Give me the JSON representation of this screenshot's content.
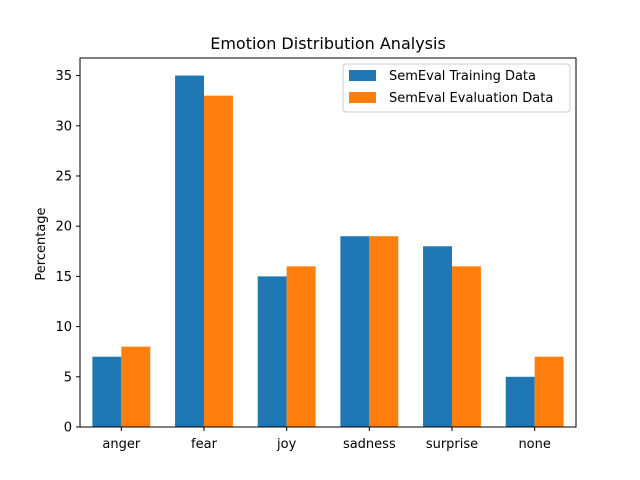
{
  "chart_data": {
    "type": "bar",
    "title": "Emotion Distribution Analysis",
    "xlabel": "",
    "ylabel": "Percentage",
    "categories": [
      "anger",
      "fear",
      "joy",
      "sadness",
      "surprise",
      "none"
    ],
    "series": [
      {
        "name": "SemEval Training Data",
        "values": [
          7,
          35,
          15,
          19,
          18,
          5
        ],
        "color": "#1f77b4"
      },
      {
        "name": "SemEval Evaluation Data",
        "values": [
          8,
          33,
          16,
          19,
          16,
          7
        ],
        "color": "#ff7f0e"
      }
    ],
    "ylim": [
      0,
      36.75
    ],
    "yticks": [
      0,
      5,
      10,
      15,
      20,
      25,
      30,
      35
    ],
    "grid": false,
    "legend_position": "top-right"
  }
}
